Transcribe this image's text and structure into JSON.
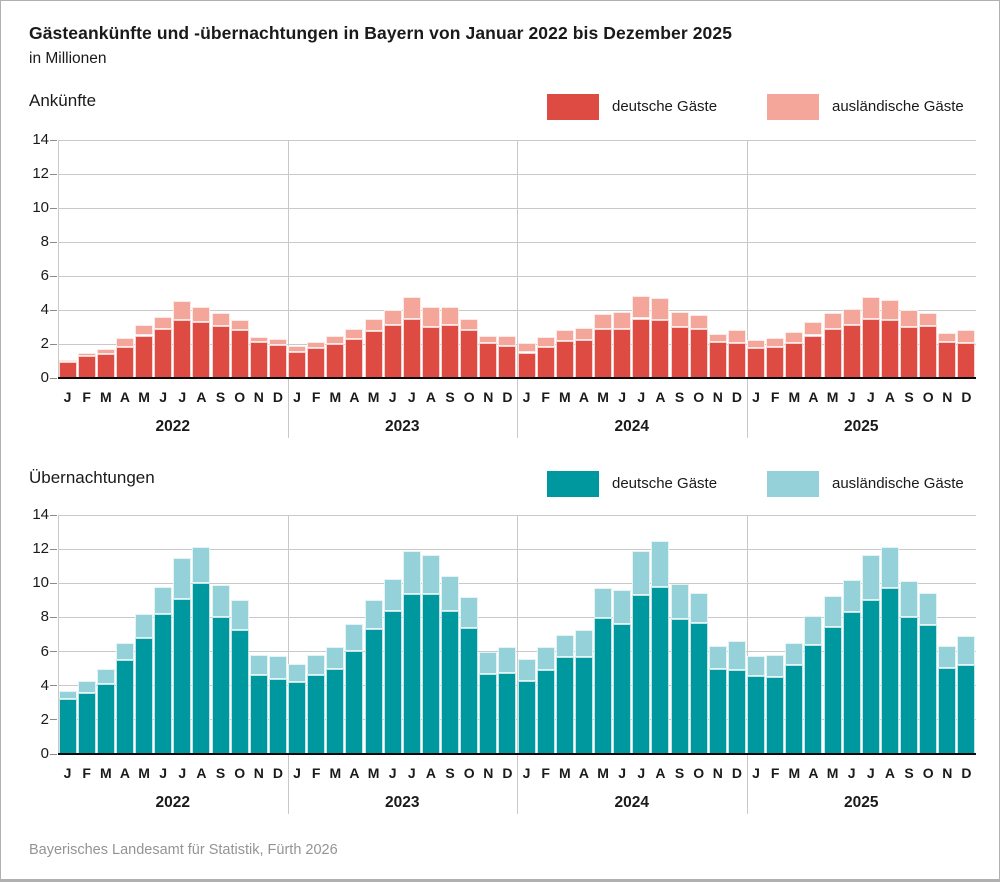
{
  "title": "Gästeankünfte und -übernachtungen in Bayern von Januar 2022 bis Dezember 2025",
  "subtitle": "in Millionen",
  "footer": "Bayerisches Landesamt für Statistik, Fürth 2026",
  "colors": {
    "frame_border": "#b0b0b0",
    "gridline": "#c9c9c9",
    "baseline": "#0a0a0a",
    "footer_text": "#949494",
    "arrivals_domestic": "#dd4b43",
    "arrivals_foreign": "#f5a69b",
    "nights_domestic": "#00989f",
    "nights_foreign": "#94d1d8"
  },
  "chart_data": [
    {
      "type": "bar",
      "stacked": true,
      "title": "Ankünfte",
      "unit": "Millionen",
      "ylim": [
        0,
        14
      ],
      "ytick_step": 2,
      "grid": true,
      "legend_position": "top-right",
      "years": [
        "2022",
        "2023",
        "2024",
        "2025"
      ],
      "month_labels": [
        "J",
        "F",
        "M",
        "A",
        "M",
        "J",
        "J",
        "A",
        "S",
        "O",
        "N",
        "D"
      ],
      "series": [
        {
          "name": "deutsche Gäste",
          "color": "#dd4b43",
          "values": [
            0.95,
            1.3,
            1.4,
            1.85,
            2.5,
            2.9,
            3.4,
            3.3,
            3.05,
            2.8,
            2.1,
            1.95,
            1.55,
            1.75,
            2.0,
            2.3,
            2.75,
            3.1,
            3.45,
            3.0,
            3.1,
            2.85,
            2.05,
            1.9,
            1.5,
            1.8,
            2.2,
            2.25,
            2.9,
            2.9,
            3.5,
            3.4,
            3.0,
            2.9,
            2.1,
            2.05,
            1.75,
            1.8,
            2.05,
            2.5,
            2.9,
            3.1,
            3.45,
            3.4,
            3.0,
            3.05,
            2.1,
            2.05
          ]
        },
        {
          "name": "ausländische Gäste",
          "color": "#f5a69b",
          "values": [
            0.1,
            0.15,
            0.3,
            0.5,
            0.6,
            0.7,
            1.15,
            0.9,
            0.75,
            0.6,
            0.3,
            0.35,
            0.35,
            0.35,
            0.45,
            0.6,
            0.75,
            0.9,
            1.3,
            1.15,
            1.05,
            0.65,
            0.4,
            0.6,
            0.55,
            0.6,
            0.6,
            0.7,
            0.85,
            1.0,
            1.35,
            1.3,
            0.9,
            0.8,
            0.5,
            0.75,
            0.5,
            0.55,
            0.65,
            0.8,
            0.9,
            0.95,
            1.3,
            1.2,
            1.0,
            0.75,
            0.55,
            0.8
          ]
        }
      ]
    },
    {
      "type": "bar",
      "stacked": true,
      "title": "Übernachtungen",
      "unit": "Millionen",
      "ylim": [
        0,
        14
      ],
      "ytick_step": 2,
      "grid": true,
      "legend_position": "top-right",
      "years": [
        "2022",
        "2023",
        "2024",
        "2025"
      ],
      "month_labels": [
        "J",
        "F",
        "M",
        "A",
        "M",
        "J",
        "J",
        "A",
        "S",
        "O",
        "N",
        "D"
      ],
      "series": [
        {
          "name": "deutsche Gäste",
          "color": "#00989f",
          "values": [
            3.2,
            3.6,
            4.1,
            5.5,
            6.8,
            8.2,
            9.1,
            10.0,
            8.0,
            7.25,
            4.65,
            4.4,
            4.2,
            4.65,
            5.0,
            6.05,
            7.3,
            8.4,
            9.4,
            9.35,
            8.4,
            7.4,
            4.7,
            4.75,
            4.3,
            4.9,
            5.7,
            5.7,
            7.95,
            7.6,
            9.3,
            9.8,
            7.9,
            7.65,
            5.0,
            4.9,
            4.55,
            4.5,
            5.2,
            6.4,
            7.45,
            8.3,
            9.0,
            9.7,
            8.05,
            7.55,
            5.05,
            5.2
          ]
        },
        {
          "name": "ausländische Gäste",
          "color": "#94d1d8",
          "values": [
            0.5,
            0.7,
            0.85,
            1.0,
            1.4,
            1.6,
            2.4,
            2.15,
            1.9,
            1.75,
            1.15,
            1.35,
            1.05,
            1.15,
            1.25,
            1.55,
            1.7,
            1.85,
            2.5,
            2.3,
            2.0,
            1.8,
            1.3,
            1.5,
            1.25,
            1.35,
            1.3,
            1.55,
            1.8,
            2.0,
            2.6,
            2.65,
            2.05,
            1.8,
            1.3,
            1.7,
            1.2,
            1.3,
            1.3,
            1.7,
            1.8,
            1.9,
            2.65,
            2.45,
            2.1,
            1.9,
            1.3,
            1.7
          ]
        }
      ]
    }
  ]
}
